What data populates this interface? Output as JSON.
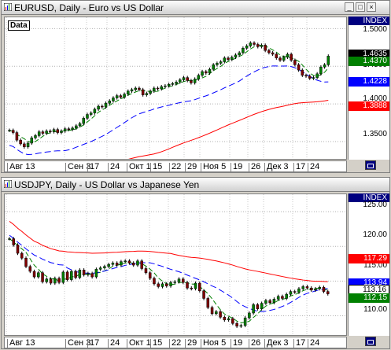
{
  "windows": [
    {
      "title": "EURUSD, Daily - Euro vs US Dollar",
      "index_label": "INDEX",
      "data_label": "Data",
      "price_ticks": [
        "1.5000",
        "1.4500",
        "1.4000",
        "1.3500"
      ],
      "tags": [
        {
          "text": "1.4635",
          "bg": "#000000",
          "fg": "#ffffff"
        },
        {
          "text": "1.4370",
          "bg": "#008000",
          "fg": "#ffffff"
        },
        {
          "text": "1.4228",
          "bg": "#0000ff",
          "fg": "#ffffff"
        },
        {
          "text": "1.3888",
          "bg": "#ff0000",
          "fg": "#ffffff"
        }
      ],
      "date_labels": [
        "Авг 13",
        "Сен 3",
        "17",
        "24",
        "Окт 1",
        "15",
        "22",
        "29",
        "Ноя 5",
        "19",
        "26",
        "Дек 3",
        "17",
        "24"
      ]
    },
    {
      "title": "USDJPY, Daily - US Dollar vs Japanese Yen",
      "index_label": "INDEX",
      "data_label": "",
      "price_ticks": [
        "125.00",
        "120.00",
        "115.00",
        "110.00"
      ],
      "tags": [
        {
          "text": "117.29",
          "bg": "#ff0000",
          "fg": "#ffffff"
        },
        {
          "text": "113.94",
          "bg": "#0000ff",
          "fg": "#ffffff"
        },
        {
          "text": "113.16",
          "bg": "#ffffff",
          "fg": "#000000"
        },
        {
          "text": "112.15",
          "bg": "#008000",
          "fg": "#ffffff"
        }
      ],
      "date_labels": [
        "Авг 13",
        "Сен 3",
        "17",
        "24",
        "Окт 1",
        "15",
        "22",
        "29",
        "Ноя 5",
        "19",
        "26",
        "Дек 3",
        "17",
        "24"
      ]
    }
  ],
  "colors": {
    "up": "#008000",
    "down": "#800000",
    "ma_fast": "#008000",
    "ma_mid": "#0000ff",
    "ma_slow": "#ff0000"
  },
  "chart_data": [
    {
      "type": "candlestick",
      "title": "EURUSD, Daily - Euro vs US Dollar",
      "ylim": [
        1.325,
        1.515
      ],
      "close": [
        1.365,
        1.362,
        1.352,
        1.347,
        1.343,
        1.348,
        1.355,
        1.358,
        1.363,
        1.361,
        1.364,
        1.363,
        1.366,
        1.362,
        1.364,
        1.367,
        1.366,
        1.368,
        1.371,
        1.374,
        1.381,
        1.386,
        1.388,
        1.393,
        1.397,
        1.396,
        1.401,
        1.404,
        1.408,
        1.411,
        1.409,
        1.413,
        1.417,
        1.419,
        1.421,
        1.419,
        1.412,
        1.414,
        1.417,
        1.421,
        1.42,
        1.423,
        1.424,
        1.426,
        1.427,
        1.429,
        1.432,
        1.435,
        1.431,
        1.428,
        1.433,
        1.438,
        1.443,
        1.441,
        1.446,
        1.452,
        1.454,
        1.456,
        1.461,
        1.459,
        1.462,
        1.465,
        1.468,
        1.474,
        1.477,
        1.481,
        1.479,
        1.476,
        1.478,
        1.471,
        1.468,
        1.466,
        1.461,
        1.458,
        1.462,
        1.466,
        1.458,
        1.452,
        1.445,
        1.438,
        1.437,
        1.434,
        1.435,
        1.44,
        1.449,
        1.452,
        1.4635
      ]
    },
    {
      "type": "candlestick",
      "title": "USDJPY, Daily - US Dollar vs Japanese Yen",
      "ylim": [
        107.0,
        127.5
      ],
      "close": [
        121.1,
        120.2,
        119.0,
        118.3,
        117.1,
        116.4,
        115.6,
        116.2,
        114.9,
        115.3,
        114.7,
        115.4,
        114.8,
        116.3,
        115.2,
        116.4,
        115.5,
        116.6,
        115.9,
        116.1,
        115.6,
        116.7,
        116.9,
        117.1,
        117.4,
        117.6,
        117.3,
        117.8,
        117.9,
        117.6,
        117.3,
        117.9,
        116.8,
        116.2,
        115.4,
        114.6,
        114.2,
        114.6,
        114.3,
        114.8,
        114.9,
        115.3,
        114.8,
        114.0,
        113.9,
        114.7,
        113.6,
        112.5,
        111.2,
        110.3,
        110.6,
        109.8,
        109.4,
        109.6,
        108.9,
        108.5,
        108.6,
        109.7,
        110.4,
        111.6,
        111.0,
        111.8,
        112.2,
        111.9,
        112.4,
        112.8,
        112.5,
        113.1,
        113.5,
        113.4,
        113.9,
        114.2,
        114.0,
        113.7,
        113.9,
        114.1,
        113.5,
        113.16
      ]
    }
  ]
}
